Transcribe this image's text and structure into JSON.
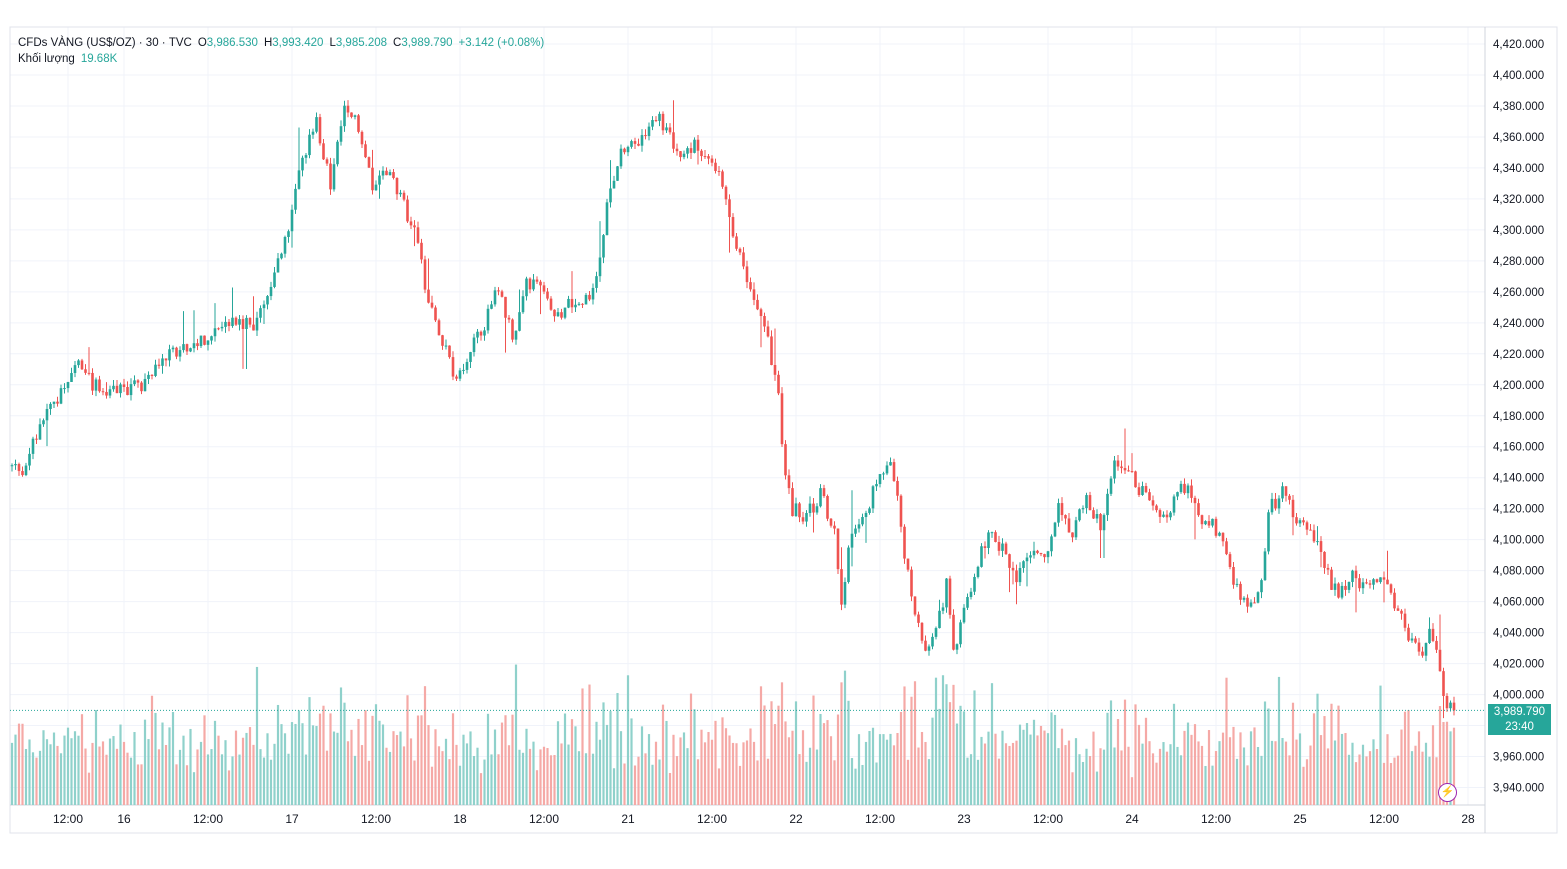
{
  "legend": {
    "symbol": "CFDs VÀNG (US$/OZ)",
    "interval": "30",
    "source": "TVC",
    "o_label": "O",
    "open": "3,986.530",
    "h_label": "H",
    "high": "3,993.420",
    "l_label": "L",
    "low": "3,985.208",
    "c_label": "C",
    "close": "3,989.790",
    "change": "+3.142 (+0.08%)",
    "volume_label": "Khối lượng",
    "volume": "19.68K"
  },
  "price_tag": {
    "price": "3,989.790",
    "countdown": "23:40"
  },
  "colors": {
    "up": "#26a69a",
    "down": "#ef5350",
    "up_vol": "#8fd1cb",
    "down_vol": "#f5a9a6",
    "grid": "#f0f3fa",
    "axis_text": "#131722"
  },
  "chart_data": {
    "type": "candlestick",
    "title": "CFDs VÀNG (US$/OZ) · 30 · TVC",
    "ylim": [
      3930,
      4430
    ],
    "y_ticks": [
      "4,420.000",
      "4,400.000",
      "4,380.000",
      "4,360.000",
      "4,340.000",
      "4,320.000",
      "4,300.000",
      "4,280.000",
      "4,260.000",
      "4,240.000",
      "4,220.000",
      "4,200.000",
      "4,180.000",
      "4,160.000",
      "4,140.000",
      "4,120.000",
      "4,100.000",
      "4,080.000",
      "4,060.000",
      "4,040.000",
      "4,020.000",
      "4,000.000",
      "3,980.000",
      "3,960.000",
      "3,940.000"
    ],
    "y_tick_values": [
      4420,
      4400,
      4380,
      4360,
      4340,
      4320,
      4300,
      4280,
      4260,
      4240,
      4220,
      4200,
      4180,
      4160,
      4140,
      4120,
      4100,
      4080,
      4060,
      4040,
      4020,
      4000,
      3980,
      3960,
      3940
    ],
    "x_ticks": [
      {
        "label": "12:00",
        "t": 16
      },
      {
        "label": "16",
        "t": 32
      },
      {
        "label": "12:00",
        "t": 56
      },
      {
        "label": "17",
        "t": 80
      },
      {
        "label": "12:00",
        "t": 104
      },
      {
        "label": "18",
        "t": 128
      },
      {
        "label": "12:00",
        "t": 152
      },
      {
        "label": "21",
        "t": 176
      },
      {
        "label": "12:00",
        "t": 200
      },
      {
        "label": "22",
        "t": 224
      },
      {
        "label": "12:00",
        "t": 248
      },
      {
        "label": "23",
        "t": 272
      },
      {
        "label": "12:00",
        "t": 296
      },
      {
        "label": "24",
        "t": 320
      },
      {
        "label": "12:00",
        "t": 344
      },
      {
        "label": "25",
        "t": 368
      },
      {
        "label": "12:00",
        "t": 392
      },
      {
        "label": "28",
        "t": 416
      }
    ],
    "anchors": [
      {
        "t": 0,
        "p": 4148
      },
      {
        "t": 4,
        "p": 4142
      },
      {
        "t": 10,
        "p": 4182
      },
      {
        "t": 14,
        "p": 4190
      },
      {
        "t": 20,
        "p": 4215
      },
      {
        "t": 24,
        "p": 4200
      },
      {
        "t": 30,
        "p": 4195
      },
      {
        "t": 38,
        "p": 4200
      },
      {
        "t": 46,
        "p": 4220
      },
      {
        "t": 56,
        "p": 4230
      },
      {
        "t": 62,
        "p": 4240
      },
      {
        "t": 70,
        "p": 4240
      },
      {
        "t": 74,
        "p": 4260
      },
      {
        "t": 80,
        "p": 4300
      },
      {
        "t": 84,
        "p": 4345
      },
      {
        "t": 88,
        "p": 4370
      },
      {
        "t": 92,
        "p": 4330
      },
      {
        "t": 96,
        "p": 4378
      },
      {
        "t": 100,
        "p": 4368
      },
      {
        "t": 104,
        "p": 4330
      },
      {
        "t": 108,
        "p": 4340
      },
      {
        "t": 112,
        "p": 4320
      },
      {
        "t": 116,
        "p": 4300
      },
      {
        "t": 120,
        "p": 4255
      },
      {
        "t": 124,
        "p": 4230
      },
      {
        "t": 128,
        "p": 4200
      },
      {
        "t": 132,
        "p": 4225
      },
      {
        "t": 136,
        "p": 4240
      },
      {
        "t": 140,
        "p": 4262
      },
      {
        "t": 144,
        "p": 4230
      },
      {
        "t": 148,
        "p": 4265
      },
      {
        "t": 152,
        "p": 4262
      },
      {
        "t": 156,
        "p": 4240
      },
      {
        "t": 160,
        "p": 4255
      },
      {
        "t": 164,
        "p": 4250
      },
      {
        "t": 168,
        "p": 4270
      },
      {
        "t": 172,
        "p": 4330
      },
      {
        "t": 176,
        "p": 4355
      },
      {
        "t": 180,
        "p": 4350
      },
      {
        "t": 184,
        "p": 4375
      },
      {
        "t": 188,
        "p": 4365
      },
      {
        "t": 192,
        "p": 4345
      },
      {
        "t": 196,
        "p": 4355
      },
      {
        "t": 200,
        "p": 4345
      },
      {
        "t": 204,
        "p": 4330
      },
      {
        "t": 208,
        "p": 4290
      },
      {
        "t": 212,
        "p": 4265
      },
      {
        "t": 216,
        "p": 4240
      },
      {
        "t": 218,
        "p": 4215
      },
      {
        "t": 220,
        "p": 4190
      },
      {
        "t": 222,
        "p": 4140
      },
      {
        "t": 224,
        "p": 4120
      },
      {
        "t": 228,
        "p": 4115
      },
      {
        "t": 232,
        "p": 4130
      },
      {
        "t": 236,
        "p": 4105
      },
      {
        "t": 238,
        "p": 4060
      },
      {
        "t": 240,
        "p": 4095
      },
      {
        "t": 244,
        "p": 4115
      },
      {
        "t": 248,
        "p": 4135
      },
      {
        "t": 252,
        "p": 4150
      },
      {
        "t": 254,
        "p": 4125
      },
      {
        "t": 256,
        "p": 4090
      },
      {
        "t": 258,
        "p": 4065
      },
      {
        "t": 262,
        "p": 4030
      },
      {
        "t": 266,
        "p": 4050
      },
      {
        "t": 268,
        "p": 4070
      },
      {
        "t": 270,
        "p": 4030
      },
      {
        "t": 272,
        "p": 4045
      },
      {
        "t": 276,
        "p": 4080
      },
      {
        "t": 280,
        "p": 4105
      },
      {
        "t": 284,
        "p": 4095
      },
      {
        "t": 288,
        "p": 4075
      },
      {
        "t": 292,
        "p": 4090
      },
      {
        "t": 296,
        "p": 4090
      },
      {
        "t": 300,
        "p": 4120
      },
      {
        "t": 304,
        "p": 4105
      },
      {
        "t": 308,
        "p": 4125
      },
      {
        "t": 312,
        "p": 4110
      },
      {
        "t": 316,
        "p": 4150
      },
      {
        "t": 320,
        "p": 4145
      },
      {
        "t": 324,
        "p": 4130
      },
      {
        "t": 328,
        "p": 4115
      },
      {
        "t": 332,
        "p": 4120
      },
      {
        "t": 336,
        "p": 4135
      },
      {
        "t": 340,
        "p": 4115
      },
      {
        "t": 344,
        "p": 4110
      },
      {
        "t": 348,
        "p": 4090
      },
      {
        "t": 352,
        "p": 4060
      },
      {
        "t": 356,
        "p": 4055
      },
      {
        "t": 358,
        "p": 4070
      },
      {
        "t": 360,
        "p": 4120
      },
      {
        "t": 364,
        "p": 4130
      },
      {
        "t": 368,
        "p": 4115
      },
      {
        "t": 372,
        "p": 4110
      },
      {
        "t": 376,
        "p": 4080
      },
      {
        "t": 380,
        "p": 4065
      },
      {
        "t": 384,
        "p": 4075
      },
      {
        "t": 388,
        "p": 4070
      },
      {
        "t": 392,
        "p": 4080
      },
      {
        "t": 396,
        "p": 4060
      },
      {
        "t": 400,
        "p": 4035
      },
      {
        "t": 404,
        "p": 4025
      },
      {
        "t": 406,
        "p": 4040
      },
      {
        "t": 408,
        "p": 4030
      },
      {
        "t": 410,
        "p": 3995
      },
      {
        "t": 412,
        "p": 3990
      }
    ],
    "n_bars": 413,
    "volume_label": "Khối lượng",
    "last_price": 3989.79
  }
}
